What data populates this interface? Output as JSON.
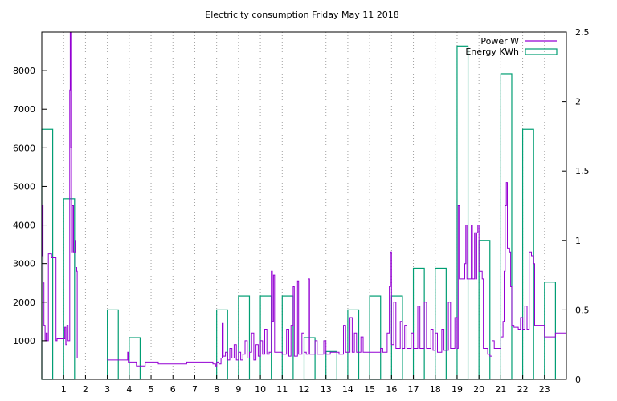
{
  "chart_data": {
    "type": "line",
    "title": "Electricity consumption Friday May 11 2018",
    "x_axis": {
      "range": [
        0,
        24
      ],
      "tick_values": [
        1,
        2,
        3,
        4,
        5,
        6,
        7,
        8,
        9,
        10,
        11,
        12,
        13,
        14,
        15,
        16,
        17,
        18,
        19,
        20,
        21,
        22,
        23
      ],
      "tick_labels": [
        "1",
        "2",
        "3",
        "4",
        "5",
        "6",
        "7",
        "8",
        "9",
        "10",
        "11",
        "12",
        "13",
        "14",
        "15",
        "16",
        "17",
        "18",
        "19",
        "20",
        "21",
        "22",
        "23"
      ],
      "grid": true
    },
    "y_axis_left": {
      "range": [
        0,
        9000
      ],
      "tick_values": [
        1000,
        2000,
        3000,
        4000,
        5000,
        6000,
        7000,
        8000
      ],
      "tick_labels": [
        "1000",
        "2000",
        "3000",
        "4000",
        "5000",
        "6000",
        "7000",
        "8000"
      ]
    },
    "y_axis_right": {
      "range": [
        0,
        2.5
      ],
      "tick_values": [
        0,
        0.5,
        1,
        1.5,
        2,
        2.5
      ],
      "tick_labels": [
        "0",
        "0.5",
        "1",
        "1.5",
        "2",
        "2.5"
      ]
    },
    "legend": {
      "position": "top-right",
      "entries": [
        {
          "label": "Power W",
          "color": "#9400d3",
          "style": "line"
        },
        {
          "label": "Energy KWh",
          "color": "#009e73",
          "style": "box"
        }
      ]
    },
    "series": [
      {
        "name": "Energy KWh",
        "type": "bar",
        "axis": "right",
        "color": "#009e73",
        "bar_width_hours": 0.5,
        "x": [
          0,
          0.5,
          1,
          1.5,
          2,
          2.5,
          3,
          3.5,
          4,
          4.5,
          5,
          5.5,
          6,
          6.5,
          7,
          7.5,
          8,
          8.5,
          9,
          9.5,
          10,
          10.5,
          11,
          11.5,
          12,
          12.5,
          13,
          13.5,
          14,
          14.5,
          15,
          15.5,
          16,
          16.5,
          17,
          17.5,
          18,
          18.5,
          19,
          19.5,
          20,
          20.5,
          21,
          21.5,
          22,
          22.5,
          23,
          23.5
        ],
        "values": [
          1.8,
          0.0,
          1.3,
          0.0,
          0.0,
          0.0,
          0.5,
          0.0,
          0.3,
          0.0,
          0.0,
          0.0,
          0.0,
          0.0,
          0.0,
          0.0,
          0.5,
          0.0,
          0.6,
          0.0,
          0.6,
          0.0,
          0.6,
          0.0,
          0.3,
          0.0,
          0.2,
          0.0,
          0.5,
          0.0,
          0.6,
          0.0,
          0.6,
          0.0,
          0.8,
          0.0,
          0.8,
          0.0,
          2.4,
          0.0,
          1.0,
          0.0,
          2.2,
          0.0,
          1.8,
          0.0,
          0.7,
          0.0
        ]
      },
      {
        "name": "Power W",
        "type": "line",
        "axis": "left",
        "color": "#9400d3",
        "points": [
          [
            0,
            3200
          ],
          [
            0.03,
            4500
          ],
          [
            0.06,
            2500
          ],
          [
            0.1,
            1400
          ],
          [
            0.15,
            1000
          ],
          [
            0.2,
            1200
          ],
          [
            0.25,
            1000
          ],
          [
            0.3,
            3250
          ],
          [
            0.45,
            3150
          ],
          [
            0.6,
            3150
          ],
          [
            0.65,
            1000
          ],
          [
            0.7,
            1050
          ],
          [
            1.0,
            1050
          ],
          [
            1.05,
            1350
          ],
          [
            1.1,
            900
          ],
          [
            1.15,
            1400
          ],
          [
            1.2,
            1000
          ],
          [
            1.28,
            7500
          ],
          [
            1.3,
            9000
          ],
          [
            1.33,
            6000
          ],
          [
            1.36,
            3300
          ],
          [
            1.4,
            4500
          ],
          [
            1.45,
            3300
          ],
          [
            1.5,
            3300
          ],
          [
            1.53,
            3600
          ],
          [
            1.56,
            2900
          ],
          [
            1.6,
            2800
          ],
          [
            1.62,
            550
          ],
          [
            3.0,
            550
          ],
          [
            3.02,
            500
          ],
          [
            3.9,
            500
          ],
          [
            3.93,
            700
          ],
          [
            3.96,
            450
          ],
          [
            4.3,
            450
          ],
          [
            4.33,
            350
          ],
          [
            4.7,
            350
          ],
          [
            4.73,
            450
          ],
          [
            5.3,
            450
          ],
          [
            5.33,
            400
          ],
          [
            6.6,
            400
          ],
          [
            6.63,
            450
          ],
          [
            7.8,
            450
          ],
          [
            7.83,
            400
          ],
          [
            7.95,
            350
          ],
          [
            8.0,
            450
          ],
          [
            8.1,
            400
          ],
          [
            8.2,
            550
          ],
          [
            8.25,
            1450
          ],
          [
            8.3,
            600
          ],
          [
            8.4,
            700
          ],
          [
            8.5,
            500
          ],
          [
            8.6,
            800
          ],
          [
            8.7,
            550
          ],
          [
            8.8,
            900
          ],
          [
            8.9,
            500
          ],
          [
            9.0,
            700
          ],
          [
            9.1,
            500
          ],
          [
            9.2,
            650
          ],
          [
            9.3,
            1000
          ],
          [
            9.4,
            550
          ],
          [
            9.5,
            700
          ],
          [
            9.6,
            1200
          ],
          [
            9.7,
            500
          ],
          [
            9.8,
            900
          ],
          [
            9.9,
            600
          ],
          [
            10.0,
            1000
          ],
          [
            10.1,
            650
          ],
          [
            10.2,
            1300
          ],
          [
            10.3,
            650
          ],
          [
            10.4,
            700
          ],
          [
            10.5,
            2800
          ],
          [
            10.55,
            1500
          ],
          [
            10.6,
            2700
          ],
          [
            10.65,
            700
          ],
          [
            11.0,
            650
          ],
          [
            11.1,
            650
          ],
          [
            11.2,
            1300
          ],
          [
            11.3,
            600
          ],
          [
            11.4,
            1400
          ],
          [
            11.5,
            2400
          ],
          [
            11.55,
            600
          ],
          [
            11.7,
            2550
          ],
          [
            11.75,
            650
          ],
          [
            11.9,
            1200
          ],
          [
            12.0,
            700
          ],
          [
            12.1,
            650
          ],
          [
            12.2,
            2600
          ],
          [
            12.25,
            650
          ],
          [
            12.4,
            650
          ],
          [
            12.5,
            1000
          ],
          [
            12.6,
            650
          ],
          [
            12.8,
            650
          ],
          [
            12.9,
            1000
          ],
          [
            13.0,
            650
          ],
          [
            13.2,
            700
          ],
          [
            13.5,
            700
          ],
          [
            13.6,
            650
          ],
          [
            13.8,
            1400
          ],
          [
            13.9,
            700
          ],
          [
            14.1,
            1600
          ],
          [
            14.2,
            700
          ],
          [
            14.3,
            1200
          ],
          [
            14.4,
            700
          ],
          [
            14.6,
            1100
          ],
          [
            14.7,
            700
          ],
          [
            15.3,
            700
          ],
          [
            15.5,
            800
          ],
          [
            15.6,
            700
          ],
          [
            15.8,
            1200
          ],
          [
            15.9,
            2400
          ],
          [
            15.95,
            3300
          ],
          [
            16.0,
            900
          ],
          [
            16.1,
            2000
          ],
          [
            16.2,
            800
          ],
          [
            16.4,
            1500
          ],
          [
            16.5,
            800
          ],
          [
            16.6,
            1400
          ],
          [
            16.7,
            800
          ],
          [
            16.9,
            1200
          ],
          [
            17.0,
            800
          ],
          [
            17.2,
            1900
          ],
          [
            17.3,
            800
          ],
          [
            17.5,
            2000
          ],
          [
            17.6,
            800
          ],
          [
            17.8,
            1300
          ],
          [
            17.9,
            750
          ],
          [
            18.0,
            1200
          ],
          [
            18.1,
            700
          ],
          [
            18.3,
            1300
          ],
          [
            18.4,
            750
          ],
          [
            18.6,
            2000
          ],
          [
            18.7,
            800
          ],
          [
            18.9,
            1600
          ],
          [
            19.0,
            800
          ],
          [
            19.05,
            4500
          ],
          [
            19.1,
            2600
          ],
          [
            19.3,
            2600
          ],
          [
            19.35,
            3000
          ],
          [
            19.4,
            4000
          ],
          [
            19.45,
            2600
          ],
          [
            19.6,
            2600
          ],
          [
            19.65,
            4000
          ],
          [
            19.7,
            2600
          ],
          [
            19.8,
            3800
          ],
          [
            19.85,
            2600
          ],
          [
            19.9,
            3800
          ],
          [
            19.95,
            4000
          ],
          [
            20.0,
            2800
          ],
          [
            20.1,
            2800
          ],
          [
            20.15,
            2600
          ],
          [
            20.2,
            800
          ],
          [
            20.3,
            800
          ],
          [
            20.4,
            650
          ],
          [
            20.5,
            600
          ],
          [
            20.6,
            1000
          ],
          [
            20.7,
            800
          ],
          [
            20.9,
            800
          ],
          [
            21.0,
            1100
          ],
          [
            21.1,
            1500
          ],
          [
            21.15,
            2800
          ],
          [
            21.2,
            4500
          ],
          [
            21.25,
            5100
          ],
          [
            21.3,
            3400
          ],
          [
            21.4,
            3300
          ],
          [
            21.45,
            2400
          ],
          [
            21.5,
            1400
          ],
          [
            21.6,
            1350
          ],
          [
            21.8,
            1300
          ],
          [
            21.9,
            1600
          ],
          [
            22.0,
            1300
          ],
          [
            22.1,
            1900
          ],
          [
            22.2,
            1300
          ],
          [
            22.3,
            3300
          ],
          [
            22.4,
            3200
          ],
          [
            22.5,
            3000
          ],
          [
            22.55,
            1400
          ],
          [
            22.6,
            1400
          ],
          [
            22.8,
            1400
          ],
          [
            22.9,
            1400
          ],
          [
            23.0,
            1100
          ],
          [
            23.2,
            1100
          ],
          [
            23.5,
            1200
          ],
          [
            24.0,
            1200
          ]
        ]
      }
    ]
  }
}
